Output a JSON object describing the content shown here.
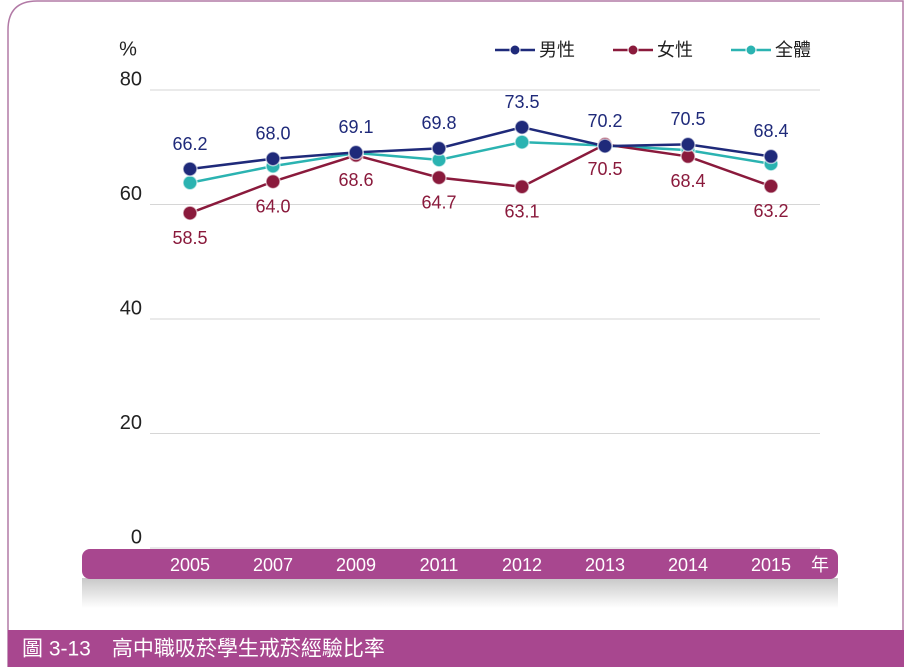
{
  "chart_data": {
    "type": "line",
    "title": "圖 3-13　高中職吸菸學生戒菸經驗比率",
    "y_label": "%",
    "x_label": "年",
    "categories": [
      "2005",
      "2007",
      "2009",
      "2011",
      "2012",
      "2013",
      "2014",
      "2015"
    ],
    "series": [
      {
        "name": "男性",
        "color": "#1f2a7a",
        "values": [
          66.2,
          68.0,
          69.1,
          69.8,
          73.5,
          70.2,
          70.5,
          68.4
        ],
        "value_labels": [
          "66.2",
          "68.0",
          "69.1",
          "69.8",
          "73.5",
          "70.2",
          "70.5",
          "68.4"
        ]
      },
      {
        "name": "女性",
        "color": "#8a1a3c",
        "values": [
          58.5,
          64.0,
          68.6,
          64.7,
          63.1,
          70.5,
          68.4,
          63.2
        ],
        "value_labels": [
          "58.5",
          "64.0",
          "68.6",
          "64.7",
          "63.1",
          "70.5",
          "68.4",
          "63.2"
        ]
      },
      {
        "name": "全體",
        "color": "#2bb3b1",
        "values": [
          63.8,
          66.7,
          69.0,
          67.8,
          70.9,
          70.3,
          69.5,
          67.1
        ]
      }
    ],
    "ylim": [
      0,
      80
    ],
    "yticks": [
      0,
      20,
      40,
      60,
      80
    ],
    "grid": true,
    "legend": "top-right"
  }
}
